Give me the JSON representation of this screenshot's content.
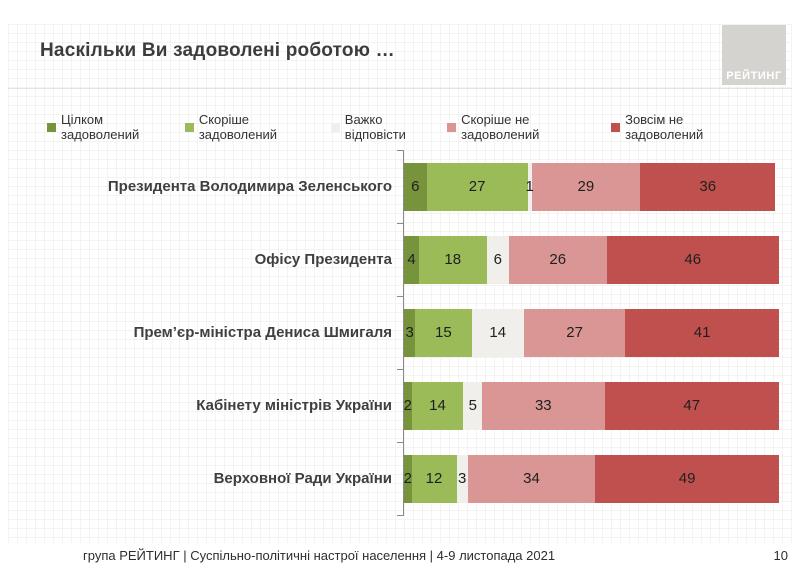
{
  "title": "Наскільки Ви задоволені роботою …",
  "logo": {
    "text": "РЕЙТИНГ",
    "bg_color": "#d5d3cf"
  },
  "footer": {
    "text": "група РЕЙТИНГ | Суспільно-політичні настрої населення  | 4-9 листопада 2021",
    "page": "10"
  },
  "chart_data": {
    "type": "bar",
    "stacked": true,
    "orientation": "horizontal",
    "unit": "percent",
    "xlim": [
      0,
      100
    ],
    "grid": false,
    "legend_position": "top",
    "categories": [
      "Президента Володимира Зеленського",
      "Офісу Президента",
      "Прем’єр-міністра Дениса Шмигаля",
      "Кабінету міністрів України",
      "Верховної Ради України"
    ],
    "series": [
      {
        "name": "Цілком задоволений",
        "color": "#77933C",
        "values": [
          6,
          4,
          3,
          2,
          2
        ]
      },
      {
        "name": "Скоріше задоволений",
        "color": "#9BBB59",
        "values": [
          27,
          18,
          15,
          14,
          12
        ]
      },
      {
        "name": "Важко відповісти",
        "color": "#F0EFEC",
        "values": [
          1,
          6,
          14,
          5,
          3
        ]
      },
      {
        "name": "Скоріше не задоволений",
        "color": "#D99694",
        "values": [
          29,
          26,
          27,
          33,
          34
        ]
      },
      {
        "name": "Зовсім не задоволений",
        "color": "#C0504D",
        "values": [
          36,
          46,
          41,
          47,
          49
        ]
      }
    ]
  }
}
